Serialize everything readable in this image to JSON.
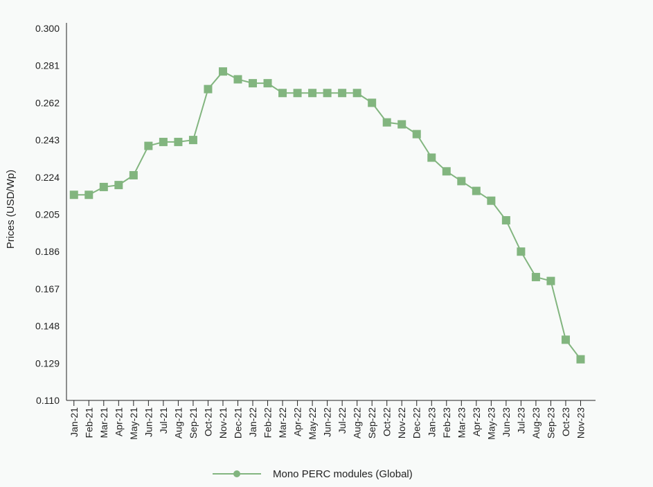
{
  "chart_data": {
    "type": "line",
    "title": "",
    "xlabel": "",
    "ylabel": "Prices (USD/Wp)",
    "ylim": [
      0.11,
      0.3
    ],
    "yticks": [
      "0.300",
      "0.281",
      "0.262",
      "0.243",
      "0.224",
      "0.205",
      "0.186",
      "0.167",
      "0.148",
      "0.129",
      "0.110"
    ],
    "grid": false,
    "legend_position": "bottom-center",
    "categories": [
      "Jan-21",
      "Feb-21",
      "Mar-21",
      "Apr-21",
      "May-21",
      "Jun-21",
      "Jul-21",
      "Aug-21",
      "Sep-21",
      "Oct-21",
      "Nov-21",
      "Dec-21",
      "Jan-22",
      "Feb-22",
      "Mar-22",
      "Apr-22",
      "May-22",
      "Jun-22",
      "Jul-22",
      "Aug-22",
      "Sep-22",
      "Oct-22",
      "Nov-22",
      "Dec-22",
      "Jan-23",
      "Feb-23",
      "Mar-23",
      "Apr-23",
      "May-23",
      "Jun-23",
      "Jul-23",
      "Aug-23",
      "Sep-23",
      "Oct-23",
      "Nov-23"
    ],
    "series": [
      {
        "name": "Mono PERC modules (Global)",
        "color": "#82b57f",
        "values": [
          0.215,
          0.215,
          0.219,
          0.22,
          0.225,
          0.24,
          0.242,
          0.242,
          0.243,
          0.269,
          0.278,
          0.274,
          0.272,
          0.272,
          0.267,
          0.267,
          0.267,
          0.267,
          0.267,
          0.267,
          0.262,
          0.252,
          0.251,
          0.246,
          0.234,
          0.227,
          0.222,
          0.217,
          0.212,
          0.202,
          0.186,
          0.173,
          0.171,
          0.141,
          0.131
        ]
      }
    ]
  }
}
